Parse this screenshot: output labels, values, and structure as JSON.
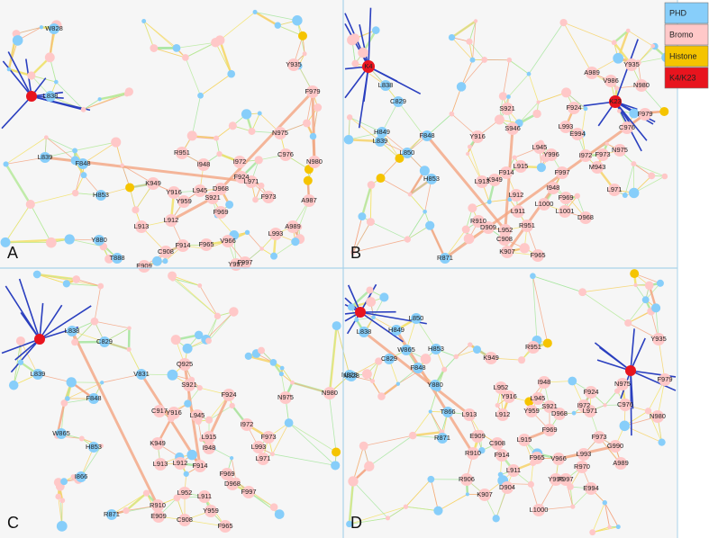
{
  "panels": [
    {
      "letter": "A",
      "nodes": [
        "W828",
        "L838",
        "L839",
        "F848",
        "H853",
        "K949",
        "Y916",
        "Y959",
        "L945",
        "I948",
        "R951",
        "I972",
        "F924",
        "L971",
        "F973",
        "C976",
        "N975",
        "N980",
        "Y935",
        "F979",
        "S921",
        "D968",
        "L912",
        "L913",
        "F969",
        "A987",
        "A989",
        "L993",
        "V966",
        "F965",
        "F914",
        "C908",
        "Y880",
        "T888",
        "E909",
        "Y997",
        "F997"
      ]
    },
    {
      "letter": "B",
      "nodes": [
        "K4",
        "L838",
        "C829",
        "H849",
        "F848",
        "L839",
        "L850",
        "H853",
        "L913",
        "K949",
        "F914",
        "Y916",
        "S921",
        "S946",
        "L945",
        "Y996",
        "L993",
        "E994",
        "F924",
        "A989",
        "V986",
        "Y935",
        "N980",
        "K23",
        "F979",
        "C976",
        "N975",
        "F973",
        "I972",
        "M943",
        "F997",
        "L915",
        "L912",
        "I948",
        "F969",
        "L971",
        "L911",
        "L1000",
        "L1001",
        "R910",
        "D909",
        "R951",
        "L952",
        "D968",
        "C908",
        "K907",
        "R871",
        "F965"
      ]
    },
    {
      "letter": "C",
      "nodes": [
        "L838",
        "C829",
        "L839",
        "V831",
        "Q925",
        "S921",
        "F924",
        "N975",
        "N980",
        "N828",
        "F848",
        "C917",
        "Y916",
        "L945",
        "W865",
        "H853",
        "K949",
        "I972",
        "F973",
        "L993",
        "L971",
        "L915",
        "I948",
        "I866",
        "L913",
        "L912",
        "F914",
        "F969",
        "D968",
        "F997",
        "L952",
        "L911",
        "R910",
        "E909",
        "Y959",
        "C908",
        "R871",
        "F965"
      ]
    },
    {
      "letter": "D",
      "nodes": [
        "L838",
        "L850",
        "H849",
        "W865",
        "H853",
        "C829",
        "F848",
        "N828",
        "Y880",
        "K949",
        "R951",
        "Y935",
        "F979",
        "N975",
        "F924",
        "C976",
        "I972",
        "L971",
        "N980",
        "I948",
        "L952",
        "Y916",
        "L945",
        "S921",
        "T866",
        "L913",
        "L912",
        "Y959",
        "D968",
        "R871",
        "E909",
        "C908",
        "L915",
        "F969",
        "F973",
        "G990",
        "R910",
        "F914",
        "F965",
        "V966",
        "L993",
        "R970",
        "A989",
        "L911",
        "R906",
        "Y996",
        "F997",
        "E994",
        "D904",
        "K907",
        "L1000"
      ]
    }
  ],
  "legend": [
    {
      "label": "PHD",
      "color": "#87cefa"
    },
    {
      "label": "Bromo",
      "color": "#ffc8c8"
    },
    {
      "label": "Histone",
      "color": "#f5c400"
    },
    {
      "label": "K4/K23",
      "color": "#e8141e"
    }
  ]
}
